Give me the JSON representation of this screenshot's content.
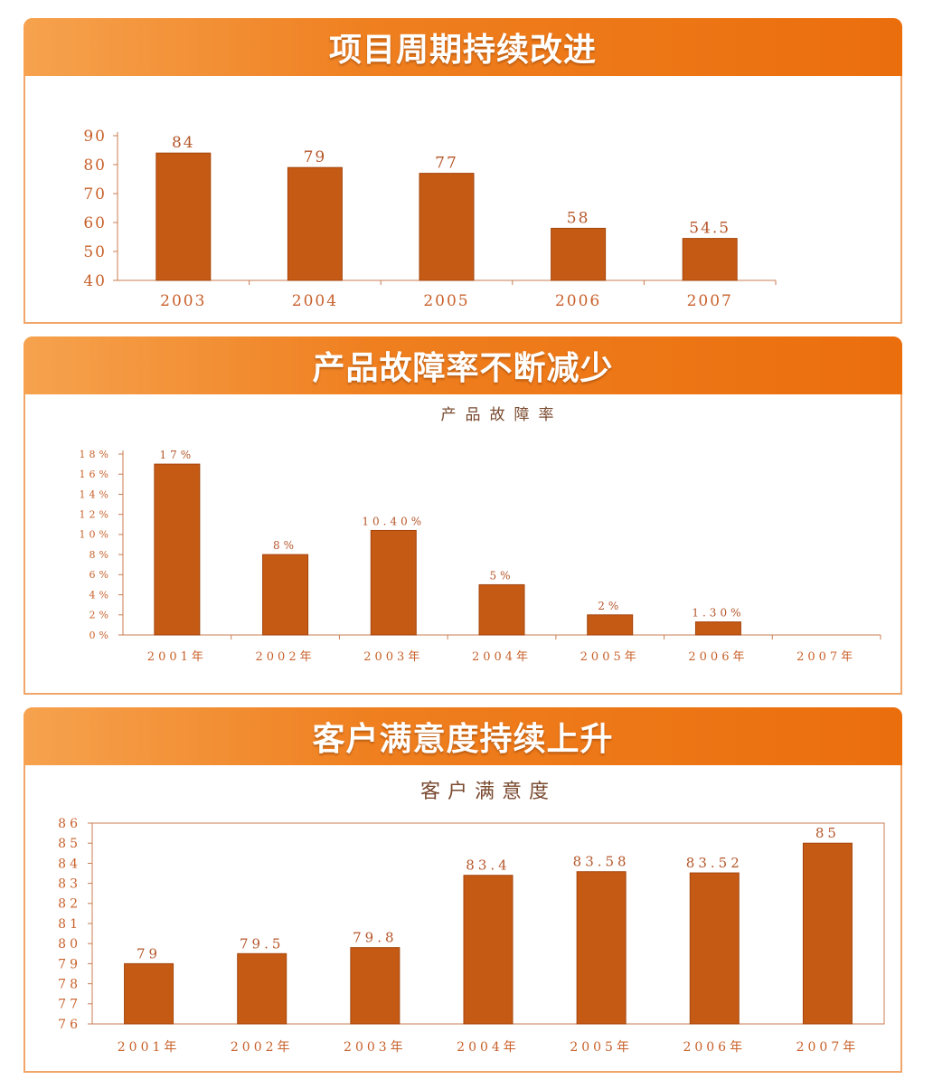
{
  "colors": {
    "bar": "#c55a14",
    "axis": "#c87c52",
    "tick": "#c8602a",
    "banner": "#ef7f1f"
  },
  "panels": [
    {
      "banner_title": "项目周期持续改进",
      "chart_data": {
        "type": "bar",
        "title": "",
        "categories": [
          "2003",
          "2004",
          "2005",
          "2006",
          "2007"
        ],
        "values": [
          84,
          79,
          77,
          58,
          54.5
        ],
        "value_labels": [
          "84",
          "79",
          "77",
          "58",
          "54.5"
        ],
        "yticks": [
          "90",
          "80",
          "70",
          "60",
          "50",
          "40"
        ],
        "ylim": [
          40,
          90
        ],
        "grid": false
      }
    },
    {
      "banner_title": "产品故障率不断减少",
      "chart_data": {
        "type": "bar",
        "title": "产品故障率",
        "categories": [
          "2001年",
          "2002年",
          "2003年",
          "2004年",
          "2005年",
          "2006年",
          "2007年"
        ],
        "values": [
          17,
          8,
          10.4,
          5,
          2,
          1.3,
          null
        ],
        "value_labels": [
          "17%",
          "8%",
          "10.40%",
          "5%",
          "2%",
          "1.30%",
          ""
        ],
        "yticks": [
          "18%",
          "16%",
          "14%",
          "12%",
          "10%",
          "8%",
          "6%",
          "4%",
          "2%",
          "0%"
        ],
        "ylim": [
          0,
          18
        ],
        "grid": false
      }
    },
    {
      "banner_title": "客户满意度持续上升",
      "chart_data": {
        "type": "bar",
        "title": "客户满意度",
        "categories": [
          "2001年",
          "2002年",
          "2003年",
          "2004年",
          "2005年",
          "2006年",
          "2007年"
        ],
        "values": [
          79,
          79.5,
          79.8,
          83.4,
          83.58,
          83.52,
          85
        ],
        "value_labels": [
          "79",
          "79.5",
          "79.8",
          "83.4",
          "83.58",
          "83.52",
          "85"
        ],
        "yticks": [
          "86",
          "85",
          "84",
          "83",
          "82",
          "81",
          "80",
          "79",
          "78",
          "77",
          "76"
        ],
        "ylim": [
          76,
          86
        ],
        "grid": false
      }
    }
  ]
}
